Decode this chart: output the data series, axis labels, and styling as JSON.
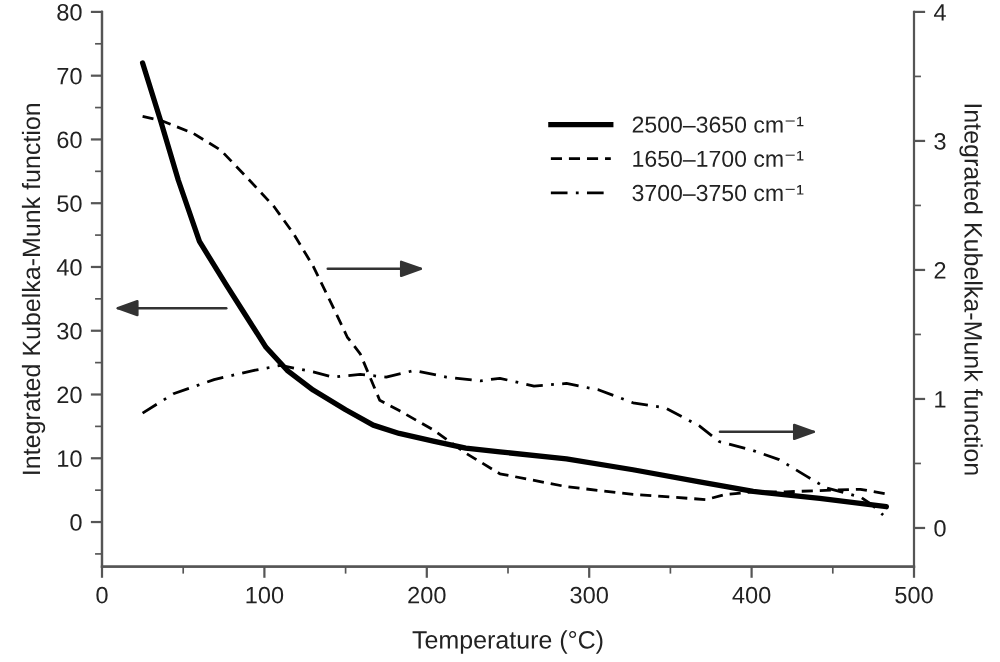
{
  "chart_data": {
    "type": "line",
    "xlabel": "Temperature (°C)",
    "ylabel": "Integrated Kubelka-Munk function",
    "y2label": "Integrated Kubelka-Munk function",
    "xlim": [
      0,
      500
    ],
    "xticks": [
      0,
      {
        "value": 50,
        "label": null
      },
      100,
      {
        "value": 150,
        "label": null
      },
      200,
      {
        "value": 250,
        "label": null
      },
      300,
      {
        "value": 350,
        "label": null
      },
      400,
      {
        "value": 450,
        "label": null
      },
      500
    ],
    "ylim": [
      -7,
      80
    ],
    "yticks": [
      {
        "value": -5,
        "label": null
      },
      0,
      {
        "value": 5,
        "label": null
      },
      10,
      {
        "value": 15,
        "label": null
      },
      20,
      {
        "value": 25,
        "label": null
      },
      30,
      {
        "value": 35,
        "label": null
      },
      40,
      {
        "value": 45,
        "label": null
      },
      50,
      {
        "value": 55,
        "label": null
      },
      60,
      {
        "value": 65,
        "label": null
      },
      70,
      {
        "value": 75,
        "label": null
      },
      80
    ],
    "y2lim": [
      -0.3,
      4
    ],
    "y2ticks": [
      0,
      {
        "value": 0.5,
        "label": null
      },
      1,
      {
        "value": 1.5,
        "label": null
      },
      2,
      {
        "value": 2.5,
        "label": null
      },
      3,
      {
        "value": 3.5,
        "label": null
      },
      4
    ],
    "legend": "top right",
    "grid": false,
    "series": [
      {
        "name": "2500–3650 cm⁻¹",
        "color": "#000000",
        "line_style": "solid",
        "axis": "y",
        "x": [
          25,
          36,
          47,
          60,
          77,
          89,
          101,
          114,
          130,
          150,
          167,
          183,
          204,
          224,
          245,
          286,
          327,
          368,
          401,
          442,
          483
        ],
        "values": [
          72,
          63,
          53.6,
          44,
          37,
          32.2,
          27.4,
          23.8,
          20.7,
          17.6,
          15.2,
          13.9,
          12.7,
          11.6,
          11,
          9.9,
          8.2,
          6.3,
          4.8,
          3.7,
          2.4
        ]
      },
      {
        "name": "1650–1700 cm⁻¹",
        "color": "#000000",
        "line_style": "dashed",
        "axis": "y2",
        "x": [
          25,
          36,
          56,
          73,
          89,
          106,
          118,
          130,
          142,
          151,
          159,
          171,
          183,
          204,
          224,
          245,
          286,
          327,
          372,
          384,
          401,
          421,
          442,
          467,
          485
        ],
        "values": [
          3.19,
          3.16,
          3.06,
          2.93,
          2.72,
          2.49,
          2.28,
          2.03,
          1.72,
          1.48,
          1.35,
          0.99,
          0.91,
          0.76,
          0.58,
          0.42,
          0.32,
          0.26,
          0.22,
          0.26,
          0.28,
          0.28,
          0.29,
          0.3,
          0.26
        ]
      },
      {
        "name": "3700–3750 cm⁻¹",
        "color": "#000000",
        "line_style": "dashdot",
        "axis": "y2",
        "x": [
          25,
          44,
          69,
          93,
          110,
          130,
          142,
          159,
          175,
          192,
          212,
          233,
          245,
          266,
          286,
          306,
          327,
          347,
          368,
          380,
          401,
          417,
          434,
          446,
          467,
          474,
          481
        ],
        "values": [
          0.89,
          1.04,
          1.15,
          1.22,
          1.26,
          1.21,
          1.17,
          1.19,
          1.17,
          1.22,
          1.17,
          1.14,
          1.16,
          1.1,
          1.12,
          1.07,
          0.97,
          0.93,
          0.79,
          0.67,
          0.6,
          0.53,
          0.4,
          0.31,
          0.24,
          0.18,
          0.1
        ]
      }
    ]
  }
}
